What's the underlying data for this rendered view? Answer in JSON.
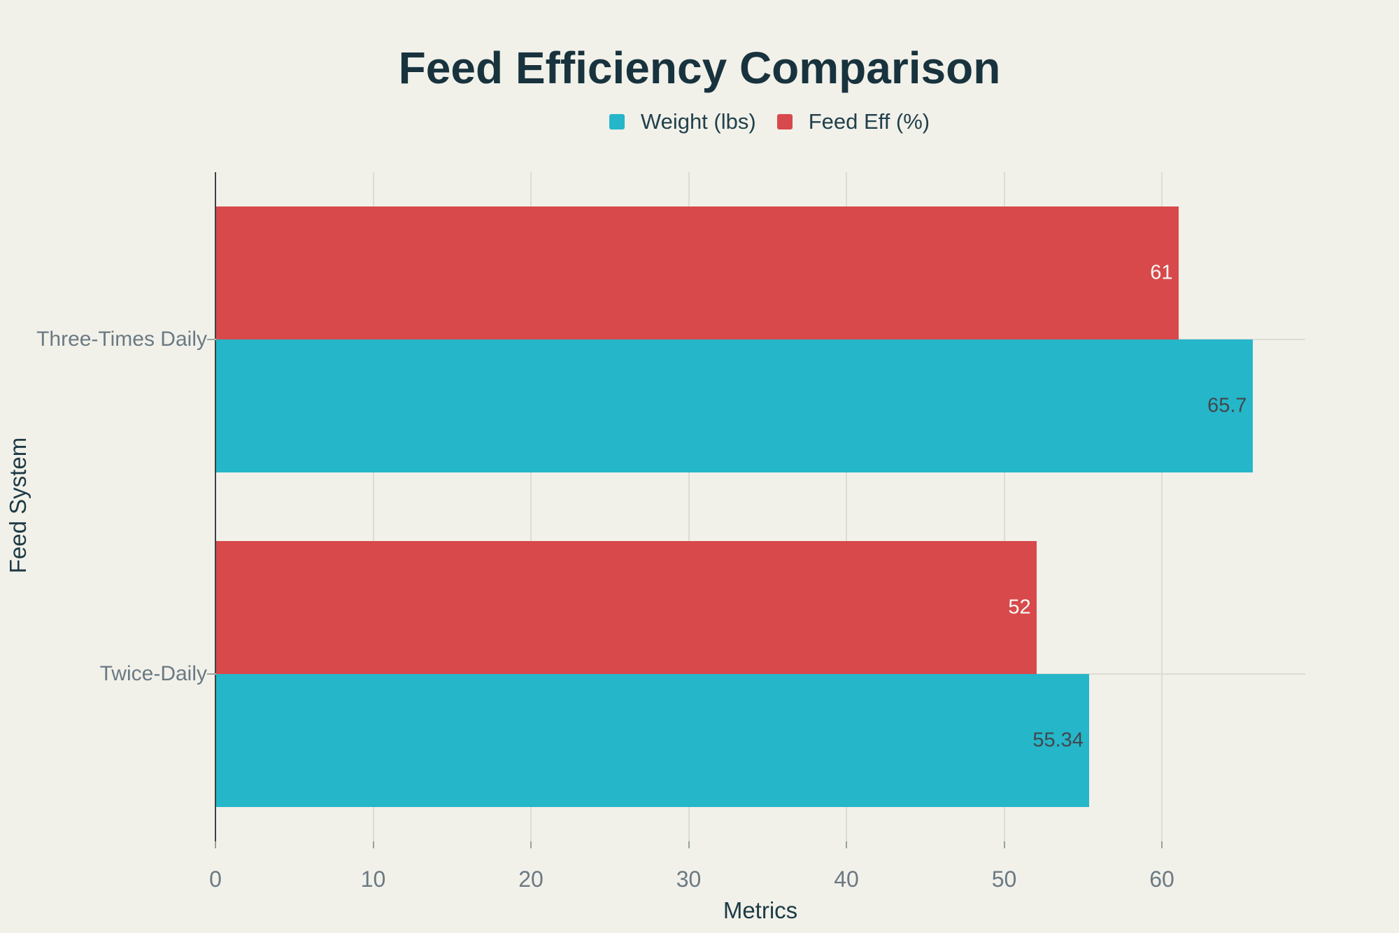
{
  "chart": {
    "title": "Feed Efficiency Comparison"
  },
  "chart_data": {
    "type": "bar",
    "orientation": "horizontal",
    "title": "Feed Efficiency Comparison",
    "xlabel": "Metrics",
    "ylabel": "Feed System",
    "categories": [
      "Three-Times Daily",
      "Twice-Daily"
    ],
    "series": [
      {
        "name": "Weight (lbs)",
        "color": "#25B6C9",
        "label_color": "#41484C",
        "values": [
          65.7,
          55.34
        ]
      },
      {
        "name": "Feed Eff (%)",
        "color": "#D8494B",
        "label_color": "#FAFAF7",
        "values": [
          61,
          52
        ]
      }
    ],
    "x_ticks": [
      0,
      10,
      20,
      30,
      40,
      50,
      60
    ],
    "xlim": [
      0,
      69.1
    ],
    "grid": true,
    "legend_position": "top-center",
    "legend": [
      "Weight (lbs)",
      "Feed Eff (%)"
    ]
  },
  "colors": {
    "background": "#F1F1EA",
    "title_text": "#18333D",
    "legend_text": "#22404B",
    "axis_name_text": "#1E3A45",
    "tick_label_text": "#6B7983",
    "grid_line": "#DCDCD4",
    "axis_line": "#3C4144",
    "tick_mark": "#9AA29F",
    "series_weight": "#25B6C9",
    "series_feed_eff": "#D8494B"
  }
}
